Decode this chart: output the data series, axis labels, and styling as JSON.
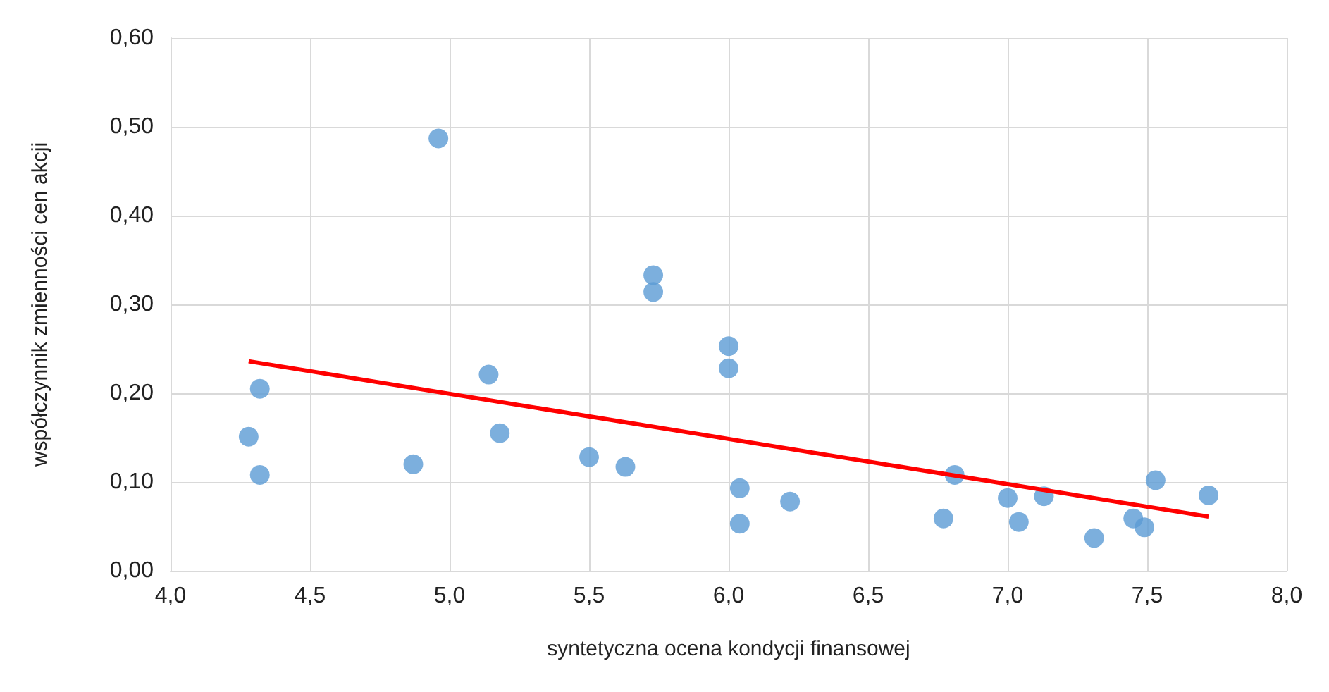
{
  "chart_data": {
    "type": "scatter",
    "xlabel": "syntetyczna ocena kondycji finansowej",
    "ylabel": "współczynnik zmienności cen akcji",
    "xlim": [
      4.0,
      8.0
    ],
    "ylim": [
      0,
      0.6
    ],
    "xticks": [
      {
        "value": 4,
        "label": "4,0"
      },
      {
        "value": 4.5,
        "label": "4,5"
      },
      {
        "value": 5,
        "label": "5,0"
      },
      {
        "value": 5.5,
        "label": "5,5"
      },
      {
        "value": 6,
        "label": "6,0"
      },
      {
        "value": 6.5,
        "label": "6,5"
      },
      {
        "value": 7,
        "label": "7,0"
      },
      {
        "value": 7.5,
        "label": "7,5"
      },
      {
        "value": 8,
        "label": "8,0"
      }
    ],
    "yticks": [
      {
        "value": 0,
        "label": "0,00"
      },
      {
        "value": 0.1,
        "label": "0,10"
      },
      {
        "value": 0.2,
        "label": "0,20"
      },
      {
        "value": 0.3,
        "label": "0,30"
      },
      {
        "value": 0.4,
        "label": "0,40"
      },
      {
        "value": 0.5,
        "label": "0,50"
      },
      {
        "value": 0.6,
        "label": "0,60"
      }
    ],
    "grid": true,
    "series": [
      {
        "marker": "circle",
        "color": "#5b9bd5",
        "x": [
          4.28,
          4.32,
          4.32,
          4.87,
          4.96,
          5.14,
          5.18,
          5.5,
          5.63,
          5.73,
          5.73,
          6.0,
          6.0,
          6.04,
          6.04,
          6.22,
          6.77,
          6.81,
          7.0,
          7.04,
          7.13,
          7.31,
          7.45,
          7.49,
          7.53,
          7.72
        ],
        "values": [
          0.151,
          0.205,
          0.108,
          0.12,
          0.487,
          0.221,
          0.155,
          0.128,
          0.117,
          0.333,
          0.314,
          0.253,
          0.228,
          0.093,
          0.053,
          0.078,
          0.059,
          0.108,
          0.082,
          0.055,
          0.084,
          0.037,
          0.059,
          0.049,
          0.102,
          0.085
        ]
      },
      {
        "type": "line",
        "marker": "none",
        "color": "#ff0000",
        "x": [
          4.28,
          7.72
        ],
        "values": [
          0.236,
          0.061
        ]
      }
    ]
  }
}
